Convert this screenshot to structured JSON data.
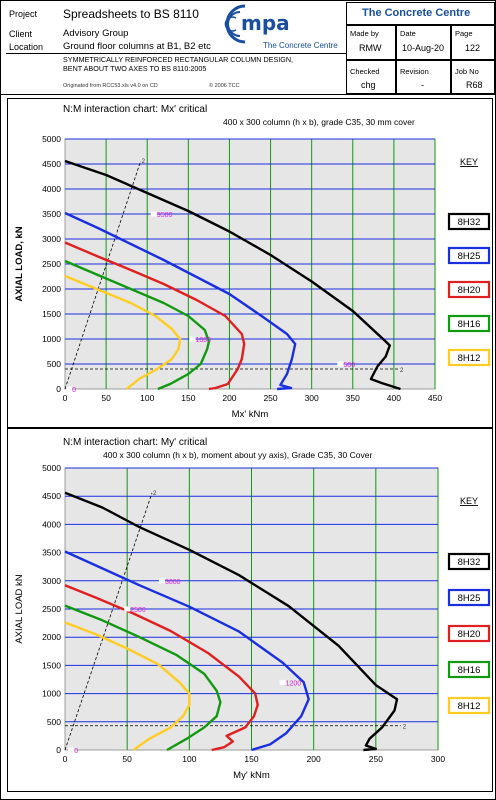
{
  "header": {
    "project_label": "Project",
    "project": "Spreadsheets to BS 8110",
    "client_label": "Client",
    "client": "Advisory Group",
    "location_label": "Location",
    "location": "Ground floor columns at B1, B2 etc",
    "desc1": "SYMMETRICALLY REINFORCED RECTANGULAR COLUMN DESIGN,",
    "desc2": "BENT ABOUT TWO AXES TO BS 8110:2005",
    "originated": "Originated from RCC53.xls v4.0 on CD",
    "copyright": "© 2006 TCC",
    "logo_mpa": "mpa",
    "logo_sub": "The Concrete Centre",
    "org": "The Concrete Centre",
    "made_by_label": "Made by",
    "made_by": "RMW",
    "date_label": "Date",
    "date": "10-Aug-20",
    "page_label": "Page",
    "page": "122",
    "checked_label": "Checked",
    "checked": "chg",
    "revision_label": "Revision",
    "revision": "-",
    "jobno_label": "Job No",
    "jobno": "R68"
  },
  "colors": {
    "8H32": "#000000",
    "8H25": "#1a2fe0",
    "8H20": "#e02020",
    "8H16": "#119911",
    "8H12": "#ffcc22",
    "grid_v": "#119911",
    "grid_h": "#1a2fe0",
    "plot_bg": "#e6e6e6",
    "marker": "#dd22dd"
  },
  "chart_data": [
    {
      "type": "line",
      "title": "N:M interaction chart: Mx' critical",
      "subtitle": "400 x 300 column (h x b), grade C35, 30 mm cover",
      "xlabel": "Mx' kNm",
      "ylabel": "AXIAL LOAD, kN",
      "xlim": [
        0,
        450
      ],
      "ylim": [
        0,
        5000
      ],
      "xticks": [
        0,
        50,
        100,
        150,
        200,
        250,
        300,
        350,
        400,
        450
      ],
      "yticks": [
        0,
        500,
        1000,
        1500,
        2000,
        2500,
        3000,
        3500,
        4000,
        4500,
        5000
      ],
      "grid": true,
      "legend_title": "KEY",
      "legend": [
        "8H32",
        "8H25",
        "8H20",
        "8H16",
        "8H12"
      ],
      "series": [
        {
          "name": "8H32",
          "points": [
            [
              0,
              4560
            ],
            [
              50,
              4280
            ],
            [
              100,
              3920
            ],
            [
              150,
              3560
            ],
            [
              200,
              3150
            ],
            [
              250,
              2680
            ],
            [
              300,
              2150
            ],
            [
              350,
              1560
            ],
            [
              390,
              950
            ],
            [
              395,
              870
            ],
            [
              390,
              650
            ],
            [
              380,
              450
            ],
            [
              372,
              200
            ],
            [
              385,
              120
            ],
            [
              408,
              0
            ]
          ]
        },
        {
          "name": "8H25",
          "points": [
            [
              0,
              3520
            ],
            [
              40,
              3220
            ],
            [
              80,
              2900
            ],
            [
              120,
              2580
            ],
            [
              160,
              2240
            ],
            [
              200,
              1900
            ],
            [
              240,
              1450
            ],
            [
              270,
              1100
            ],
            [
              280,
              900
            ],
            [
              276,
              600
            ],
            [
              270,
              300
            ],
            [
              262,
              80
            ],
            [
              275,
              20
            ],
            [
              258,
              0
            ]
          ]
        },
        {
          "name": "8H20",
          "points": [
            [
              0,
              2930
            ],
            [
              40,
              2650
            ],
            [
              80,
              2380
            ],
            [
              120,
              2100
            ],
            [
              160,
              1780
            ],
            [
              195,
              1460
            ],
            [
              215,
              1100
            ],
            [
              218,
              900
            ],
            [
              215,
              600
            ],
            [
              210,
              400
            ],
            [
              198,
              100
            ],
            [
              183,
              20
            ],
            [
              175,
              0
            ]
          ]
        },
        {
          "name": "8H16",
          "points": [
            [
              0,
              2560
            ],
            [
              40,
              2280
            ],
            [
              80,
              2000
            ],
            [
              120,
              1720
            ],
            [
              150,
              1460
            ],
            [
              170,
              1180
            ],
            [
              175,
              950
            ],
            [
              173,
              800
            ],
            [
              165,
              500
            ],
            [
              150,
              300
            ],
            [
              128,
              100
            ],
            [
              113,
              0
            ]
          ]
        },
        {
          "name": "8H12",
          "points": [
            [
              0,
              2260
            ],
            [
              40,
              1990
            ],
            [
              80,
              1720
            ],
            [
              110,
              1460
            ],
            [
              130,
              1200
            ],
            [
              140,
              1000
            ],
            [
              138,
              800
            ],
            [
              130,
              600
            ],
            [
              112,
              400
            ],
            [
              90,
              200
            ],
            [
              75,
              0
            ]
          ]
        }
      ],
      "eccentricity_line": {
        "points": [
          [
            0,
            0
          ],
          [
            92,
            4560
          ]
        ],
        "end_label": "2"
      },
      "axial_line": {
        "y": 400,
        "end_label": "2"
      },
      "markers": [
        {
          "x": 108,
          "y": 3500,
          "label": "3500"
        },
        {
          "x": 155,
          "y": 1000,
          "label": "1000"
        },
        {
          "x": 335,
          "y": 500,
          "label": "500"
        },
        {
          "x": 5,
          "y": 0,
          "label": "0"
        }
      ]
    },
    {
      "type": "line",
      "title": "N:M interaction chart: My' critical",
      "subtitle": "400 x 300 column (h x b), moment about yy axis), Grade C35, 30 Cover",
      "xlabel": "My' kNm",
      "ylabel": "AXIAL LOAD kN",
      "xlim": [
        0,
        300
      ],
      "ylim": [
        0,
        5000
      ],
      "xticks": [
        0,
        50,
        100,
        150,
        200,
        250,
        300
      ],
      "yticks": [
        0,
        500,
        1000,
        1500,
        2000,
        2500,
        3000,
        3500,
        4000,
        4500,
        5000
      ],
      "grid": true,
      "legend_title": "KEY",
      "legend": [
        "8H32",
        "8H25",
        "8H20",
        "8H16",
        "8H12"
      ],
      "series": [
        {
          "name": "8H32",
          "points": [
            [
              0,
              4560
            ],
            [
              30,
              4300
            ],
            [
              60,
              3950
            ],
            [
              100,
              3550
            ],
            [
              140,
              3100
            ],
            [
              180,
              2550
            ],
            [
              220,
              1850
            ],
            [
              250,
              1150
            ],
            [
              267,
              900
            ],
            [
              265,
              700
            ],
            [
              255,
              400
            ],
            [
              245,
              200
            ],
            [
              242,
              80
            ],
            [
              250,
              20
            ],
            [
              240,
              0
            ]
          ]
        },
        {
          "name": "8H25",
          "points": [
            [
              0,
              3520
            ],
            [
              30,
              3220
            ],
            [
              60,
              2920
            ],
            [
              100,
              2540
            ],
            [
              140,
              2100
            ],
            [
              175,
              1550
            ],
            [
              192,
              1200
            ],
            [
              196,
              900
            ],
            [
              190,
              600
            ],
            [
              178,
              300
            ],
            [
              165,
              100
            ],
            [
              150,
              0
            ]
          ]
        },
        {
          "name": "8H20",
          "points": [
            [
              0,
              2920
            ],
            [
              25,
              2700
            ],
            [
              55,
              2420
            ],
            [
              85,
              2110
            ],
            [
              115,
              1720
            ],
            [
              140,
              1300
            ],
            [
              153,
              1000
            ],
            [
              155,
              800
            ],
            [
              152,
              600
            ],
            [
              145,
              400
            ],
            [
              130,
              250
            ],
            [
              135,
              150
            ],
            [
              128,
              50
            ],
            [
              118,
              0
            ]
          ]
        },
        {
          "name": "8H16",
          "points": [
            [
              0,
              2560
            ],
            [
              30,
              2300
            ],
            [
              60,
              2000
            ],
            [
              90,
              1680
            ],
            [
              112,
              1350
            ],
            [
              122,
              1050
            ],
            [
              125,
              850
            ],
            [
              122,
              600
            ],
            [
              112,
              400
            ],
            [
              98,
              200
            ],
            [
              82,
              0
            ]
          ]
        },
        {
          "name": "8H12",
          "points": [
            [
              0,
              2260
            ],
            [
              25,
              2050
            ],
            [
              50,
              1800
            ],
            [
              75,
              1520
            ],
            [
              92,
              1200
            ],
            [
              100,
              1000
            ],
            [
              100,
              800
            ],
            [
              95,
              600
            ],
            [
              85,
              400
            ],
            [
              68,
              200
            ],
            [
              55,
              0
            ]
          ]
        }
      ],
      "eccentricity_line": {
        "points": [
          [
            0,
            0
          ],
          [
            70,
            4560
          ]
        ],
        "end_label": "2"
      },
      "axial_line": {
        "y": 430,
        "end_label": "2"
      },
      "markers": [
        {
          "x": 78,
          "y": 3000,
          "label": "3000"
        },
        {
          "x": 50,
          "y": 2500,
          "label": "2500"
        },
        {
          "x": 175,
          "y": 1200,
          "label": "1200"
        },
        {
          "x": 5,
          "y": 0,
          "label": "0"
        }
      ]
    }
  ]
}
